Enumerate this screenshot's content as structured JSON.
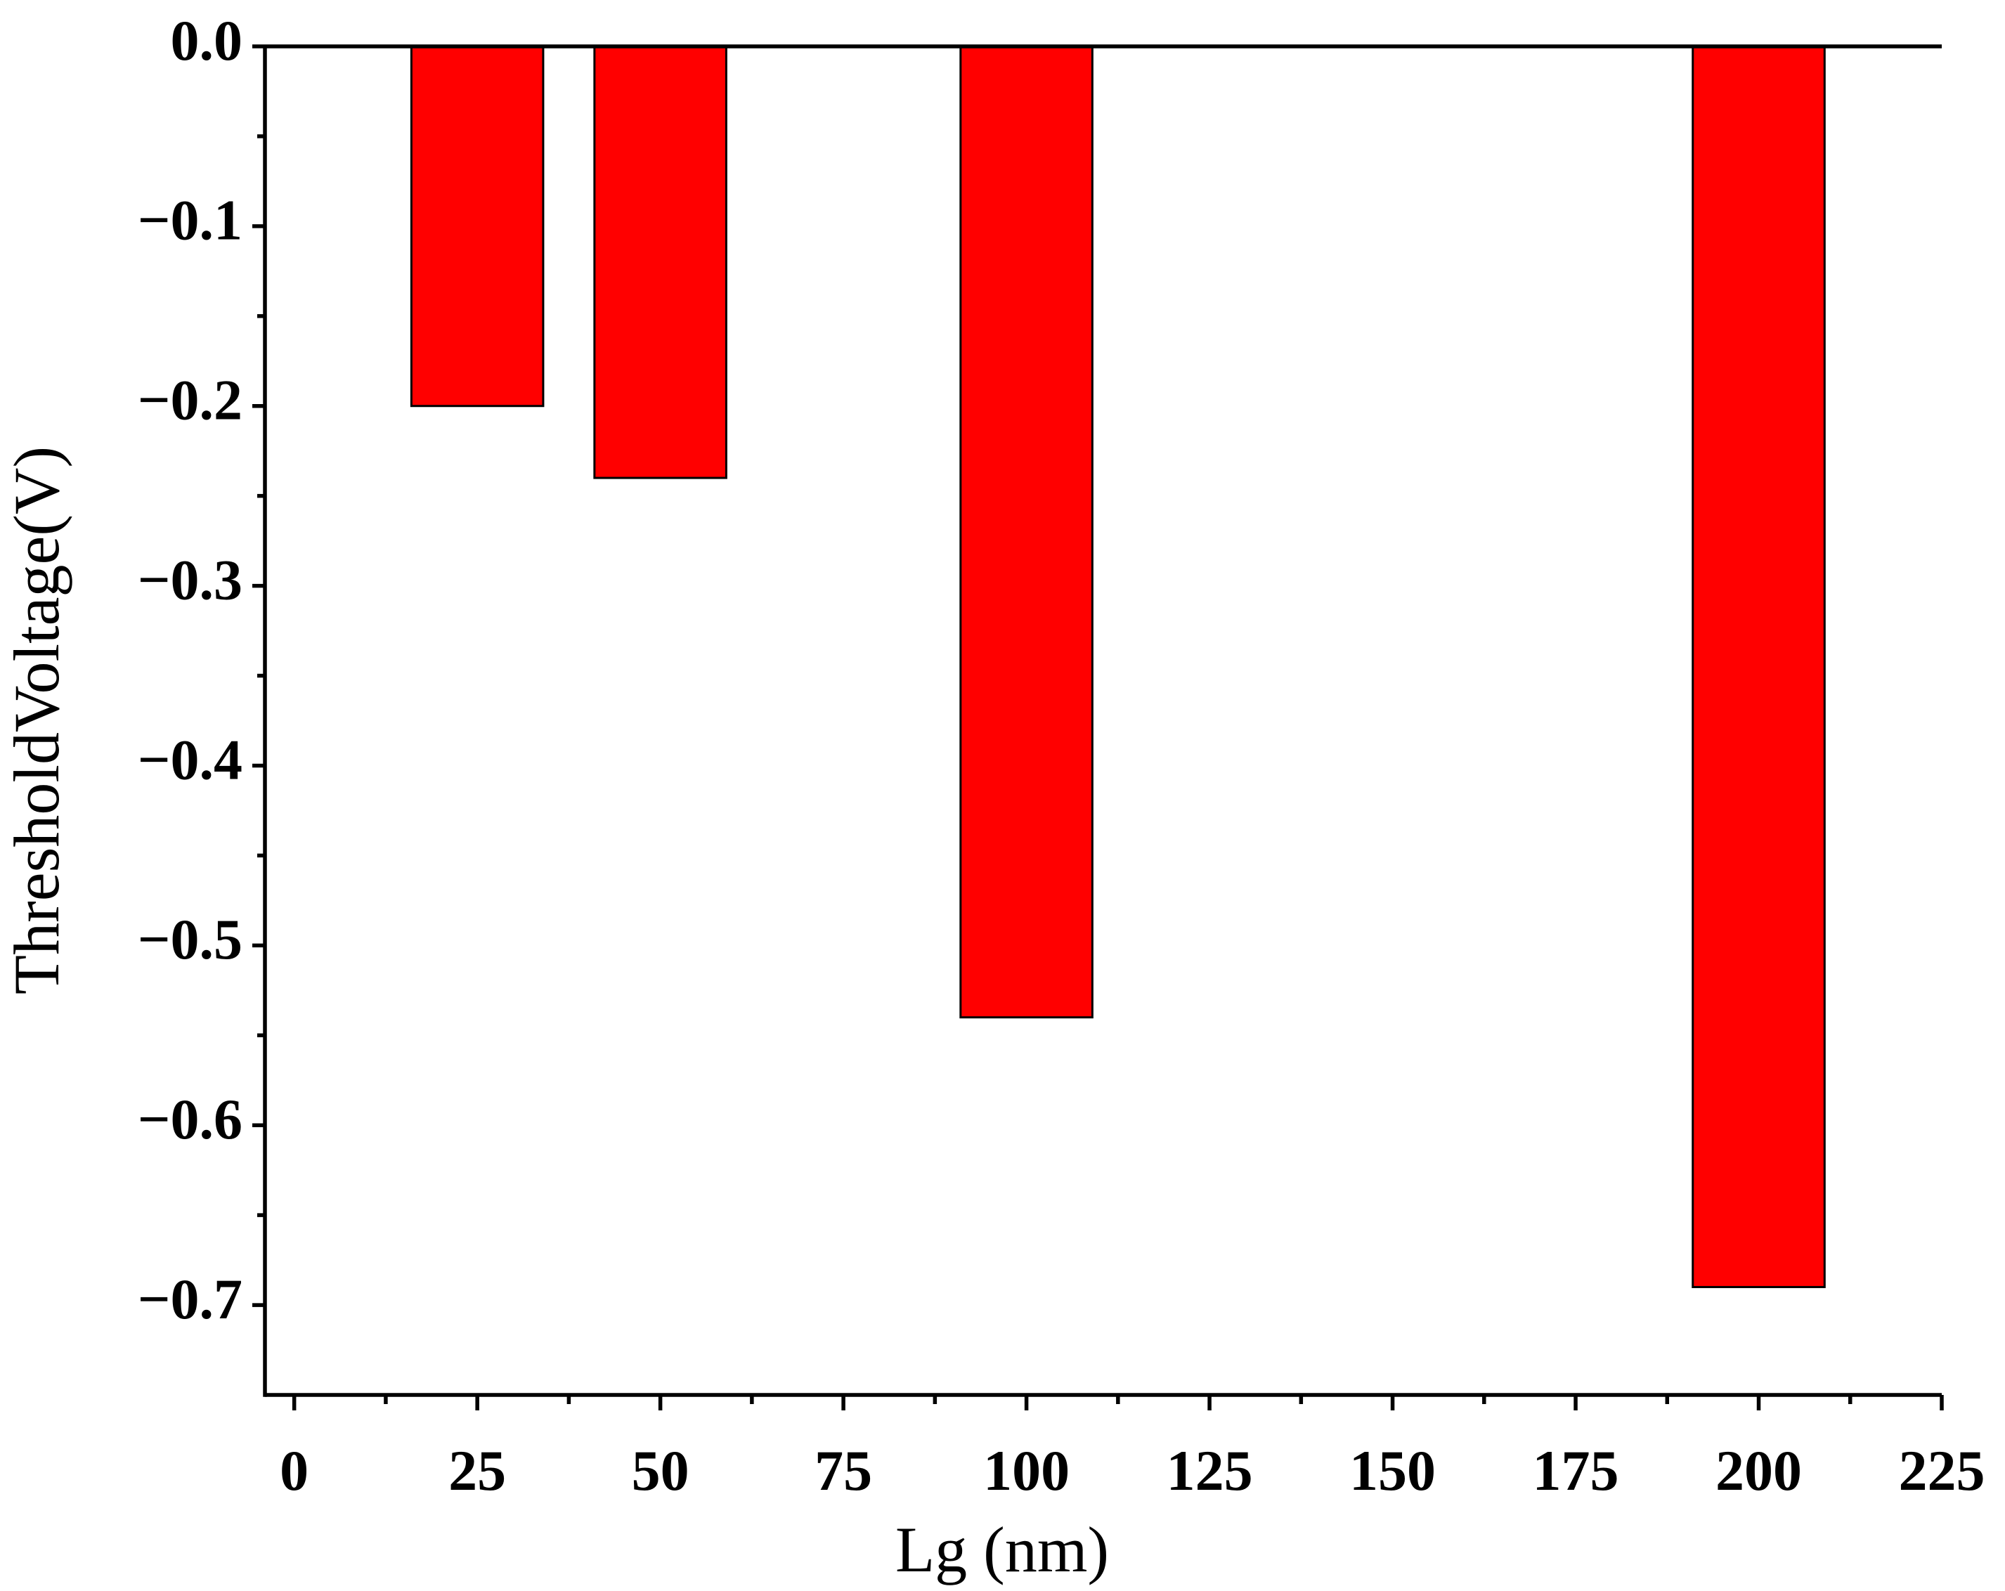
{
  "chart_data": {
    "type": "bar",
    "x": [
      25,
      50,
      100,
      200
    ],
    "values": [
      -0.2,
      -0.24,
      -0.54,
      -0.69
    ],
    "color": "#ff0000",
    "xlabel": "Lg (nm)",
    "ylabel": "ThresholdVoltage(V)",
    "xlim": [
      -4,
      225
    ],
    "xticks": [
      0,
      25,
      50,
      75,
      100,
      125,
      150,
      175,
      200,
      225
    ],
    "ylim": [
      -0.75,
      0
    ],
    "yticks": [
      {
        "value": 0,
        "label": "0.0"
      },
      {
        "value": -0.1,
        "label": "−0.1"
      },
      {
        "value": -0.2,
        "label": "−0.2"
      },
      {
        "value": -0.3,
        "label": "−0.3"
      },
      {
        "value": -0.4,
        "label": "−0.4"
      },
      {
        "value": -0.5,
        "label": "−0.5"
      },
      {
        "value": -0.6,
        "label": "−0.6"
      },
      {
        "value": -0.7,
        "label": "−0.7"
      }
    ],
    "grid": false
  }
}
